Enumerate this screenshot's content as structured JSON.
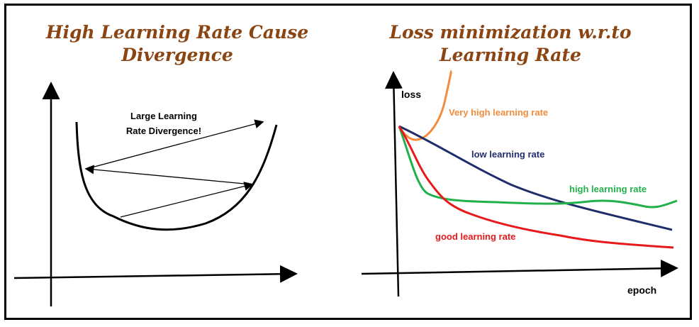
{
  "left_panel": {
    "title_line1": "High Learning Rate Cause",
    "title_line2": "Divergence",
    "annotation_line1": "Large Learning",
    "annotation_line2": "Rate Divergence!"
  },
  "right_panel": {
    "title_line1": "Loss minimization w.r.to",
    "title_line2": "Learning Rate",
    "y_axis_label": "loss",
    "x_axis_label": "epoch",
    "curves": [
      {
        "label": "Very high learning rate",
        "color": "#F28C3C"
      },
      {
        "label": "low learning rate",
        "color": "#1F2D6B"
      },
      {
        "label": "high learning rate",
        "color": "#22B04B"
      },
      {
        "label": "good learning rate",
        "color": "#E8191B"
      }
    ]
  },
  "colors": {
    "title": "#8B4513",
    "axis": "#000000"
  }
}
